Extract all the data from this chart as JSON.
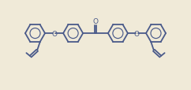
{
  "bg_color": "#f0ead8",
  "line_color": "#4a5a8a",
  "line_width": 1.3,
  "figsize": [
    2.42,
    1.15
  ],
  "dpi": 100,
  "O_label": "O",
  "o_label": "O",
  "font_size": 6.5
}
